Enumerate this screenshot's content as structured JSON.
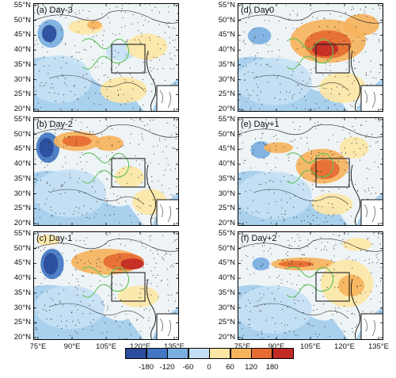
{
  "panels": [
    {
      "id": "a",
      "title": "(a) Day-3"
    },
    {
      "id": "b",
      "title": "(b) Day-2"
    },
    {
      "id": "c",
      "title": "(c) Day-1"
    },
    {
      "id": "d",
      "title": "(d) Day0"
    },
    {
      "id": "e",
      "title": "(e) Day+1"
    },
    {
      "id": "f",
      "title": "(f) Day+2"
    }
  ],
  "lat_labels": [
    "55°N",
    "50°N",
    "45°N",
    "40°N",
    "35°N",
    "30°N",
    "25°N",
    "20°N"
  ],
  "lon_labels": [
    "75°E",
    "90°E",
    "105°E",
    "120°E",
    "135°E"
  ],
  "colorbar": {
    "ticks": [
      "-180",
      "-120",
      "-60",
      "0",
      "60",
      "120",
      "180"
    ],
    "colors": [
      "#2a4d9c",
      "#4276c2",
      "#7aaee0",
      "#c6e0f3",
      "#fce6a6",
      "#f6b25c",
      "#e66b32",
      "#c22a24"
    ]
  },
  "colors": {
    "sea_blue": "#a9d1ee",
    "land_neutral": "#eef4f6",
    "box": "#222222",
    "river": "#5ec15a"
  }
}
